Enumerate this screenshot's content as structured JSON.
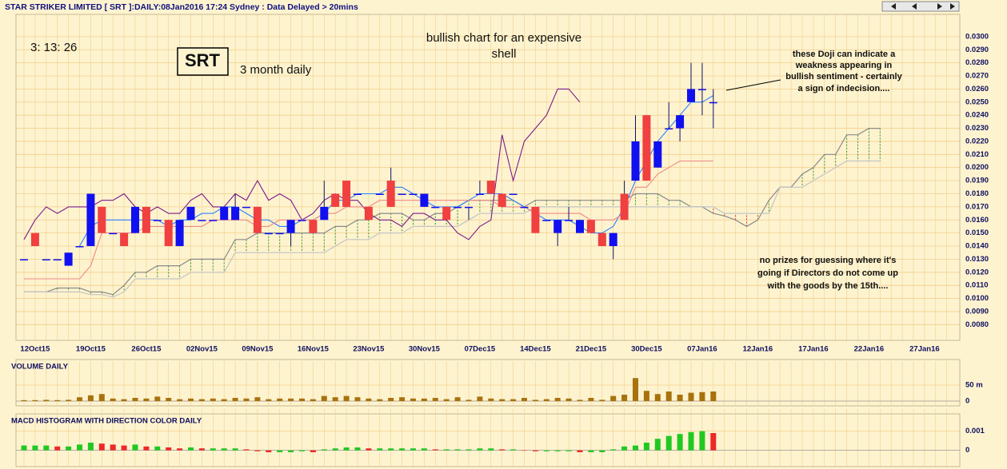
{
  "header": {
    "title": "STAR STRIKER LIMITED [ SRT ]:DAILY:08Jan2016 17:24 Sydney : Data Delayed > 20mins"
  },
  "chart_data": [
    {
      "type": "candlestick",
      "annotations": {
        "clock": "3: 13: 26",
        "ticker": "SRT",
        "period": "3 month daily",
        "headline": [
          "bullish chart for an expensive",
          "shell"
        ],
        "doji_note": [
          "these Doji can indicate a",
          "weakness appearing in",
          "bullish sentiment - certainly",
          "a sign of indecision...."
        ],
        "prize_note": [
          "no prizes for guessing where it's",
          "going if Directors do not come up",
          "with the goods by the 15th...."
        ]
      },
      "categories": [
        null,
        "12Oct15",
        null,
        null,
        null,
        null,
        "19Oct15",
        null,
        null,
        null,
        null,
        "26Oct15",
        null,
        null,
        null,
        null,
        "02Nov15",
        null,
        null,
        null,
        null,
        "09Nov15",
        null,
        null,
        null,
        null,
        "16Nov15",
        null,
        null,
        null,
        null,
        "23Nov15",
        null,
        null,
        null,
        null,
        "30Nov15",
        null,
        null,
        null,
        null,
        "07Dec15",
        null,
        null,
        null,
        null,
        "14Dec15",
        null,
        null,
        null,
        null,
        "21Dec15",
        null,
        null,
        null,
        null,
        "30Dec15",
        null,
        null,
        null,
        null,
        "07Jan16",
        null,
        null,
        null,
        null,
        "12Jan16",
        null,
        null,
        null,
        null,
        "17Jan16",
        null,
        null,
        null,
        null,
        "22Jan16",
        null,
        null,
        null,
        null,
        "27Jan16",
        null,
        null
      ],
      "open": [
        0.013,
        0.015,
        0.013,
        0.013,
        0.0125,
        0.014,
        0.014,
        0.017,
        0.015,
        0.015,
        0.015,
        0.017,
        0.016,
        0.016,
        0.014,
        0.016,
        0.016,
        0.016,
        0.016,
        0.016,
        0.017,
        0.017,
        0.015,
        0.015,
        0.015,
        0.016,
        0.016,
        0.016,
        0.018,
        0.019,
        0.018,
        0.017,
        0.018,
        0.019,
        0.018,
        0.018,
        0.017,
        0.017,
        0.017,
        0.017,
        0.017,
        0.018,
        0.019,
        0.018,
        0.018,
        0.017,
        0.017,
        0.016,
        0.015,
        0.016,
        0.015,
        0.016,
        0.015,
        0.014,
        0.018,
        0.019,
        0.024,
        0.02,
        0.023,
        0.023,
        0.025,
        0.026,
        0.025,
        null,
        null,
        null,
        null,
        null,
        null,
        null,
        null,
        null,
        null,
        null,
        null,
        null,
        null,
        null,
        null,
        null,
        null,
        null,
        null,
        null
      ],
      "high": [
        0.013,
        0.015,
        0.013,
        0.013,
        0.0135,
        0.014,
        0.018,
        0.017,
        0.015,
        0.015,
        0.017,
        0.017,
        0.016,
        0.016,
        0.016,
        0.017,
        0.016,
        0.016,
        0.017,
        0.018,
        0.017,
        0.017,
        0.015,
        0.015,
        0.016,
        0.016,
        0.016,
        0.019,
        0.018,
        0.019,
        0.018,
        0.017,
        0.018,
        0.02,
        0.018,
        0.018,
        0.018,
        0.017,
        0.017,
        0.017,
        0.017,
        0.019,
        0.019,
        0.018,
        0.018,
        0.017,
        0.017,
        0.016,
        0.016,
        0.017,
        0.016,
        0.016,
        0.015,
        0.015,
        0.019,
        0.024,
        0.024,
        0.022,
        0.025,
        0.024,
        0.028,
        0.028,
        0.026,
        null,
        null,
        null,
        null,
        null,
        null,
        null,
        null,
        null,
        null,
        null,
        null,
        null,
        null,
        null,
        null,
        null,
        null,
        null,
        null,
        null
      ],
      "low": [
        0.013,
        0.014,
        0.013,
        0.013,
        0.0125,
        0.014,
        0.014,
        0.015,
        0.015,
        0.014,
        0.015,
        0.015,
        0.016,
        0.014,
        0.014,
        0.016,
        0.016,
        0.016,
        0.016,
        0.016,
        0.017,
        0.015,
        0.015,
        0.015,
        0.014,
        0.016,
        0.015,
        0.016,
        0.017,
        0.017,
        0.018,
        0.016,
        0.018,
        0.017,
        0.018,
        0.018,
        0.017,
        0.017,
        0.016,
        0.017,
        0.016,
        0.018,
        0.018,
        0.017,
        0.018,
        0.017,
        0.015,
        0.016,
        0.014,
        0.016,
        0.015,
        0.015,
        0.014,
        0.013,
        0.016,
        0.019,
        0.019,
        0.02,
        0.023,
        0.022,
        0.025,
        0.024,
        0.023,
        null,
        null,
        null,
        null,
        null,
        null,
        null,
        null,
        null,
        null,
        null,
        null,
        null,
        null,
        null,
        null,
        null,
        null,
        null,
        null,
        null
      ],
      "close": [
        0.013,
        0.014,
        0.013,
        0.013,
        0.0135,
        0.014,
        0.018,
        0.015,
        0.015,
        0.014,
        0.017,
        0.015,
        0.016,
        0.014,
        0.016,
        0.017,
        0.016,
        0.016,
        0.017,
        0.017,
        0.017,
        0.015,
        0.015,
        0.015,
        0.016,
        0.016,
        0.015,
        0.017,
        0.017,
        0.017,
        0.018,
        0.016,
        0.018,
        0.017,
        0.018,
        0.018,
        0.018,
        0.017,
        0.016,
        0.017,
        0.017,
        0.018,
        0.018,
        0.017,
        0.018,
        0.017,
        0.015,
        0.016,
        0.016,
        0.016,
        0.016,
        0.015,
        0.014,
        0.015,
        0.016,
        0.022,
        0.019,
        0.022,
        0.023,
        0.024,
        0.026,
        0.026,
        0.025,
        null,
        null,
        null,
        null,
        null,
        null,
        null,
        null,
        null,
        null,
        null,
        null,
        null,
        null,
        null,
        null,
        null,
        null,
        null,
        null,
        null
      ],
      "up_color": "#1010f0",
      "down_color": "#f04040",
      "lines": [
        {
          "color": "#2a7fff",
          "values": [
            null,
            null,
            null,
            null,
            null,
            0.014,
            0.0155,
            0.016,
            0.016,
            0.016,
            0.016,
            0.016,
            0.016,
            0.0155,
            0.016,
            0.016,
            0.0165,
            0.0165,
            0.017,
            0.017,
            0.0165,
            0.016,
            0.016,
            0.0155,
            0.0155,
            0.016,
            0.016,
            0.0165,
            0.0175,
            0.0175,
            0.018,
            0.018,
            0.018,
            0.0185,
            0.0185,
            0.018,
            0.0175,
            0.017,
            0.017,
            0.017,
            0.0175,
            0.018,
            0.018,
            0.018,
            0.0175,
            0.017,
            0.0165,
            0.016,
            0.016,
            0.016,
            0.0155,
            0.015,
            0.015,
            0.0155,
            0.017,
            0.019,
            0.0205,
            0.022,
            0.023,
            0.024,
            0.025,
            0.025,
            0.0255,
            null,
            null,
            null,
            null,
            null,
            null,
            null,
            null,
            null,
            null,
            null,
            null,
            null,
            null,
            null,
            null,
            null,
            null,
            null,
            null,
            null
          ]
        },
        {
          "color": "#7a1a8a",
          "values": [
            0.0145,
            0.016,
            0.017,
            0.0165,
            0.017,
            0.017,
            0.017,
            0.0175,
            0.0175,
            0.018,
            0.017,
            0.0165,
            0.017,
            0.0165,
            0.0165,
            0.0175,
            0.018,
            0.017,
            0.017,
            0.018,
            0.0175,
            0.019,
            0.0175,
            0.018,
            0.0175,
            0.016,
            0.0165,
            0.0175,
            0.018,
            0.0175,
            0.0175,
            0.0165,
            0.016,
            0.016,
            0.0155,
            0.0165,
            0.0165,
            0.016,
            0.016,
            0.015,
            0.0145,
            0.0155,
            0.016,
            0.0225,
            0.019,
            0.022,
            0.023,
            0.024,
            0.026,
            0.026,
            0.025,
            null,
            null,
            null,
            null,
            null,
            null,
            null,
            null,
            null,
            null,
            null,
            null,
            null,
            null,
            null,
            null,
            null,
            null,
            null,
            null,
            null,
            null,
            null,
            null,
            null,
            null,
            null,
            null,
            null,
            null,
            null,
            null,
            null
          ]
        },
        {
          "color": "#f08888",
          "values": [
            0.0115,
            0.0115,
            0.0115,
            0.0115,
            0.0115,
            0.0115,
            0.0125,
            0.015,
            0.015,
            0.015,
            0.015,
            0.0155,
            0.0155,
            0.0155,
            0.0155,
            0.0155,
            0.0155,
            0.016,
            0.016,
            0.016,
            0.016,
            0.0155,
            0.0155,
            0.016,
            0.016,
            0.016,
            0.016,
            0.0165,
            0.0165,
            0.017,
            0.017,
            0.017,
            0.0175,
            0.0175,
            0.0175,
            0.0175,
            0.0175,
            0.0175,
            0.0175,
            0.0175,
            0.0175,
            0.0175,
            0.0175,
            0.017,
            0.017,
            0.017,
            0.0165,
            0.0165,
            0.0165,
            0.0165,
            0.0165,
            0.016,
            0.016,
            0.016,
            0.0165,
            0.0185,
            0.0185,
            0.0195,
            0.02,
            0.0205,
            0.0205,
            0.0205,
            0.0205,
            null,
            null,
            null,
            null,
            null,
            null,
            null,
            null,
            null,
            null,
            null,
            null,
            null,
            null,
            null,
            null,
            null,
            null,
            null,
            null,
            null
          ]
        }
      ],
      "cloud": {
        "span_a": [
          0.0105,
          0.0105,
          0.0105,
          0.0108,
          0.0108,
          0.0108,
          0.0105,
          0.0105,
          0.0103,
          0.011,
          0.012,
          0.012,
          0.0125,
          0.0125,
          0.0125,
          0.013,
          0.013,
          0.013,
          0.013,
          0.0145,
          0.0145,
          0.015,
          0.015,
          0.015,
          0.015,
          0.015,
          0.015,
          0.015,
          0.0155,
          0.0155,
          0.016,
          0.016,
          0.0165,
          0.0165,
          0.0165,
          0.016,
          0.016,
          0.0165,
          0.0165,
          0.017,
          0.0175,
          0.0175,
          0.0175,
          0.0175,
          0.0175,
          0.017,
          0.0175,
          0.0175,
          0.0175,
          0.0175,
          0.0175,
          0.0175,
          0.0175,
          0.0175,
          0.0175,
          0.018,
          0.018,
          0.018,
          0.0175,
          0.0175,
          0.017,
          0.017,
          0.0165,
          0.0163,
          0.016,
          0.0155,
          0.016,
          0.0175,
          0.0185,
          0.0185,
          0.0195,
          0.02,
          0.021,
          0.021,
          0.0225,
          0.0225,
          0.023,
          0.023,
          null,
          null,
          null,
          null,
          null,
          null
        ],
        "span_b": [
          0.0105,
          0.0105,
          0.0105,
          0.0105,
          0.0105,
          0.0105,
          0.0103,
          0.0103,
          0.0101,
          0.0105,
          0.0115,
          0.0115,
          0.0115,
          0.0115,
          0.0115,
          0.012,
          0.012,
          0.012,
          0.012,
          0.0135,
          0.0135,
          0.0135,
          0.0135,
          0.0135,
          0.0135,
          0.0135,
          0.0135,
          0.0135,
          0.014,
          0.0145,
          0.0145,
          0.0145,
          0.015,
          0.015,
          0.015,
          0.0155,
          0.0155,
          0.0155,
          0.0155,
          0.0155,
          0.016,
          0.0165,
          0.0165,
          0.0165,
          0.0165,
          0.0165,
          0.017,
          0.017,
          0.017,
          0.017,
          0.017,
          0.017,
          0.017,
          0.017,
          0.017,
          0.017,
          0.017,
          0.017,
          0.017,
          0.017,
          0.017,
          0.017,
          0.017,
          0.0165,
          0.0165,
          0.0165,
          0.0165,
          0.0165,
          0.0185,
          0.0185,
          0.0185,
          0.019,
          0.0195,
          0.02,
          0.0205,
          0.0205,
          0.0205,
          0.0205,
          null,
          null,
          null,
          null,
          null,
          null
        ],
        "line_a_color": "#8a8a8a",
        "line_b_color": "#c4c4c4",
        "up_fill_color": "#2c9a2c",
        "down_fill_color": "#d83030"
      },
      "ylim": [
        0.0068,
        0.0317
      ],
      "yticks": [
        {
          "value": 0.008,
          "label": "0.0080"
        },
        {
          "value": 0.009,
          "label": "0.0090"
        },
        {
          "value": 0.01,
          "label": "0.0100"
        },
        {
          "value": 0.011,
          "label": "0.0110"
        },
        {
          "value": 0.012,
          "label": "0.0120"
        },
        {
          "value": 0.013,
          "label": "0.0130"
        },
        {
          "value": 0.014,
          "label": "0.0140"
        },
        {
          "value": 0.015,
          "label": "0.0150"
        },
        {
          "value": 0.016,
          "label": "0.0160"
        },
        {
          "value": 0.017,
          "label": "0.0170"
        },
        {
          "value": 0.018,
          "label": "0.0180"
        },
        {
          "value": 0.019,
          "label": "0.0190"
        },
        {
          "value": 0.02,
          "label": "0.0200"
        },
        {
          "value": 0.021,
          "label": "0.0210"
        },
        {
          "value": 0.022,
          "label": "0.0220"
        },
        {
          "value": 0.023,
          "label": "0.0230"
        },
        {
          "value": 0.024,
          "label": "0.0240"
        },
        {
          "value": 0.025,
          "label": "0.0250"
        },
        {
          "value": 0.026,
          "label": "0.0260"
        },
        {
          "value": 0.027,
          "label": "0.0270"
        },
        {
          "value": 0.028,
          "label": "0.0280"
        },
        {
          "value": 0.029,
          "label": "0.0290"
        },
        {
          "value": 0.03,
          "label": "0.0300"
        }
      ],
      "grid": true
    },
    {
      "type": "bar",
      "title": "VOLUME DAILY",
      "color": "#a8720c",
      "values": [
        3,
        3,
        4,
        3,
        4,
        12,
        18,
        22,
        8,
        6,
        10,
        8,
        14,
        10,
        6,
        8,
        6,
        8,
        6,
        10,
        8,
        12,
        6,
        8,
        8,
        8,
        6,
        16,
        12,
        16,
        12,
        8,
        6,
        10,
        12,
        8,
        8,
        10,
        6,
        12,
        4,
        14,
        8,
        6,
        6,
        10,
        4,
        6,
        10,
        8,
        4,
        10,
        4,
        16,
        20,
        72,
        32,
        22,
        30,
        20,
        26,
        28,
        30
      ],
      "ylim": [
        0,
        80
      ],
      "yticks": [
        {
          "value": 50,
          "label": "50 m"
        },
        0
      ],
      "grid": true
    },
    {
      "type": "bar",
      "title": "MACD HISTOGRAM WITH DIRECTION COLOR DAILY",
      "up_color": "#22c822",
      "down_color": "#ee2828",
      "values": [
        0.00025,
        0.00025,
        0.00025,
        0.0002,
        0.0002,
        0.0003,
        0.0004,
        0.00035,
        0.0003,
        0.00025,
        0.0003,
        0.0002,
        0.0002,
        0.00015,
        0.0001,
        0.00015,
        0.0001,
        0.0001,
        0.0001,
        0.0001,
        5e-05,
        -5e-05,
        -0.0001,
        -0.0001,
        -0.0001,
        -5e-05,
        -0.0001,
        5e-05,
        0.0001,
        0.00015,
        0.00015,
        0.0001,
        0.0001,
        0.0001,
        0.0001,
        0.0001,
        0.0001,
        5e-05,
        5e-05,
        5e-05,
        5e-05,
        0.0001,
        0.0001,
        5e-05,
        5e-05,
        0,
        -5e-05,
        -5e-05,
        -5e-05,
        -5e-05,
        -0.0001,
        -0.0001,
        -0.0001,
        5e-05,
        0.0002,
        0.00025,
        0.0004,
        0.0006,
        0.00075,
        0.00085,
        0.00095,
        0.001,
        0.0009
      ],
      "ylim": [
        -0.0006,
        0.0014
      ],
      "yticks": [
        0.001,
        0
      ],
      "grid": true
    }
  ]
}
